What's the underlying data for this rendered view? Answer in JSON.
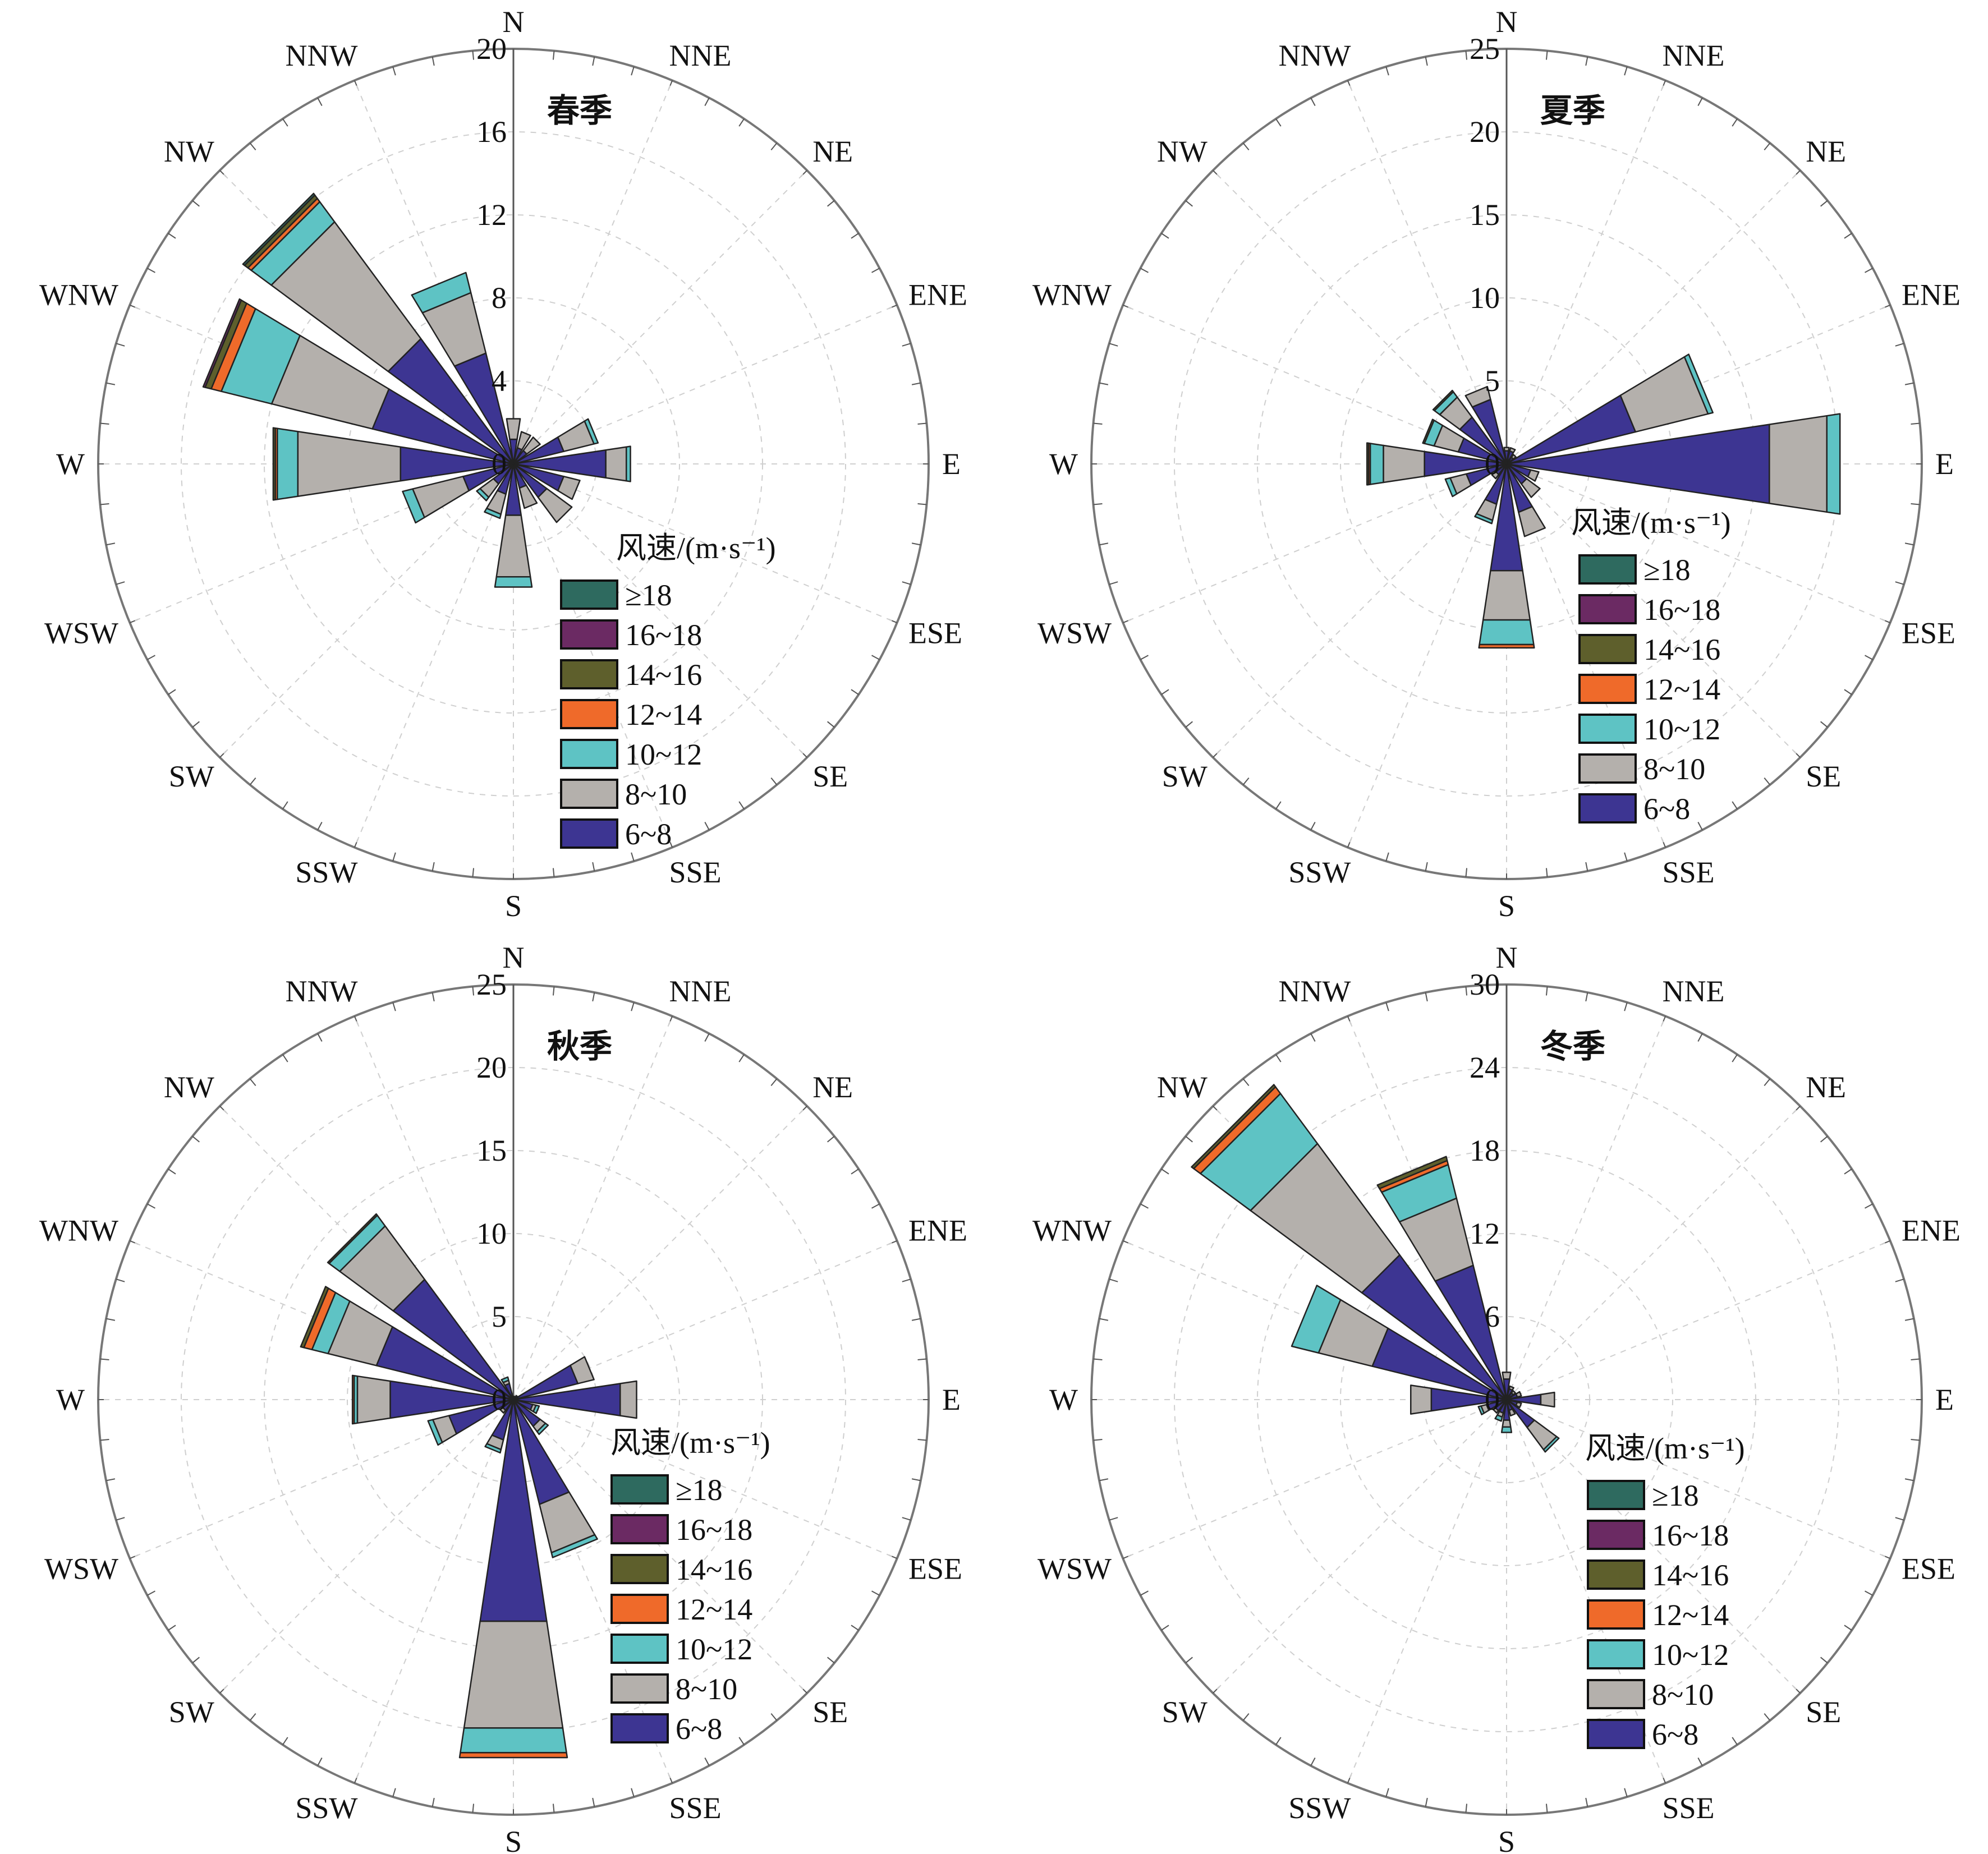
{
  "palette": [
    "#2e6a5f",
    "#6b2a63",
    "#5e5f2c",
    "#ef6a2a",
    "#5ec3c4",
    "#b4b0ac",
    "#3d3592"
  ],
  "chart_data": [
    {
      "type": "wind-rose",
      "title": "春季",
      "directions": [
        "N",
        "NNE",
        "NE",
        "ENE",
        "E",
        "ESE",
        "SE",
        "SSE",
        "S",
        "SSW",
        "SW",
        "WSW",
        "W",
        "WNW",
        "NW",
        "NNW"
      ],
      "radial_ticks": [
        0,
        4,
        8,
        12,
        16,
        20
      ],
      "rmax": 20,
      "legend_title": "风速/(m·s⁻¹)",
      "legend": [
        "≥18",
        "16~18",
        "14~16",
        "12~14",
        "10~12",
        "8~10",
        "6~8"
      ],
      "series": [
        {
          "name": "6~8",
          "values": [
            1.2,
            0.8,
            0.8,
            2.5,
            4.5,
            2.5,
            2.0,
            1.2,
            2.5,
            1.5,
            1.2,
            2.5,
            5.5,
            7.0,
            7.5,
            5.5
          ]
        },
        {
          "name": "8~10",
          "values": [
            1.0,
            0.8,
            0.8,
            1.5,
            1.0,
            0.8,
            1.5,
            1.0,
            3.0,
            1.0,
            0.8,
            2.5,
            5.0,
            5.0,
            7.0,
            3.0
          ]
        },
        {
          "name": "10~12",
          "values": [
            0.0,
            0.0,
            0.0,
            0.2,
            0.2,
            0.0,
            0.0,
            0.0,
            0.5,
            0.2,
            0.2,
            0.5,
            1.0,
            2.5,
            1.2,
            1.0
          ]
        },
        {
          "name": "12~14",
          "values": [
            0,
            0,
            0,
            0,
            0,
            0,
            0,
            0,
            0,
            0,
            0,
            0,
            0.1,
            0.5,
            0.2,
            0
          ]
        },
        {
          "name": "14~16",
          "values": [
            0,
            0,
            0,
            0,
            0,
            0,
            0,
            0,
            0,
            0,
            0,
            0,
            0.1,
            0.3,
            0.2,
            0
          ]
        },
        {
          "name": "16~18",
          "values": [
            0,
            0,
            0,
            0,
            0,
            0,
            0,
            0,
            0,
            0,
            0,
            0,
            0,
            0.1,
            0,
            0
          ]
        },
        {
          "name": "≥18",
          "values": [
            0,
            0,
            0,
            0,
            0,
            0,
            0,
            0,
            0,
            0,
            0,
            0,
            0,
            0,
            0.1,
            0
          ]
        }
      ]
    },
    {
      "type": "wind-rose",
      "title": "夏季",
      "directions": [
        "N",
        "NNE",
        "NE",
        "ENE",
        "E",
        "ESE",
        "SE",
        "SSE",
        "S",
        "SSW",
        "SW",
        "WSW",
        "W",
        "WNW",
        "NW",
        "NNW"
      ],
      "radial_ticks": [
        0,
        5,
        10,
        15,
        20,
        25
      ],
      "rmax": 25,
      "legend_title": "风速/(m·s⁻¹)",
      "legend": [
        "≥18",
        "16~18",
        "14~16",
        "12~14",
        "10~12",
        "8~10",
        "6~8"
      ],
      "series": [
        {
          "name": "6~8",
          "values": [
            0.8,
            0.8,
            0.5,
            8.0,
            16.0,
            1.5,
            1.5,
            3.0,
            6.5,
            2.5,
            0.8,
            2.5,
            5.0,
            3.0,
            3.5,
            4.0
          ]
        },
        {
          "name": "8~10",
          "values": [
            0.2,
            0.2,
            0.2,
            4.5,
            3.5,
            0.5,
            1.0,
            1.5,
            3.0,
            1.0,
            0.3,
            1.0,
            2.5,
            1.5,
            1.5,
            0.8
          ]
        },
        {
          "name": "10~12",
          "values": [
            0,
            0,
            0,
            0.3,
            0.8,
            0,
            0,
            0,
            1.5,
            0.2,
            0,
            0.3,
            0.8,
            0.6,
            0.4,
            0
          ]
        },
        {
          "name": "12~14",
          "values": [
            0,
            0,
            0,
            0,
            0,
            0,
            0,
            0,
            0.2,
            0,
            0,
            0,
            0.1,
            0,
            0,
            0
          ]
        },
        {
          "name": "14~16",
          "values": [
            0,
            0,
            0,
            0,
            0,
            0,
            0,
            0,
            0,
            0,
            0,
            0,
            0.1,
            0.1,
            0.1,
            0
          ]
        },
        {
          "name": "16~18",
          "values": [
            0,
            0,
            0,
            0,
            0,
            0,
            0,
            0,
            0,
            0,
            0,
            0,
            0,
            0,
            0,
            0
          ]
        },
        {
          "name": "≥18",
          "values": [
            0,
            0,
            0,
            0,
            0,
            0,
            0,
            0,
            0,
            0,
            0,
            0,
            0,
            0,
            0,
            0
          ]
        }
      ]
    },
    {
      "type": "wind-rose",
      "title": "秋季",
      "directions": [
        "N",
        "NNE",
        "NE",
        "ENE",
        "E",
        "ESE",
        "SE",
        "SSE",
        "S",
        "SSW",
        "SW",
        "WSW",
        "W",
        "WNW",
        "NW",
        "NNW"
      ],
      "radial_ticks": [
        0,
        5,
        10,
        15,
        20,
        25
      ],
      "rmax": 25,
      "legend_title": "风速/(m·s⁻¹)",
      "legend": [
        "≥18",
        "16~18",
        "14~16",
        "12~14",
        "10~12",
        "8~10",
        "6~8"
      ],
      "series": [
        {
          "name": "6~8",
          "values": [
            0.2,
            0.2,
            0.3,
            4.0,
            6.5,
            1.2,
            2.0,
            6.5,
            13.5,
            2.5,
            0.8,
            4.0,
            7.5,
            8.5,
            9.0,
            1.0
          ]
        },
        {
          "name": "8~10",
          "values": [
            0,
            0,
            0,
            1.0,
            1.0,
            0.2,
            0.4,
            3.0,
            6.5,
            0.6,
            0.2,
            1.0,
            2.0,
            3.0,
            4.0,
            0.2
          ]
        },
        {
          "name": "10~12",
          "values": [
            0,
            0,
            0,
            0,
            0,
            0.2,
            0.2,
            0.3,
            1.5,
            0.2,
            0,
            0.3,
            0.2,
            1.0,
            0.8,
            0.2
          ]
        },
        {
          "name": "12~14",
          "values": [
            0,
            0,
            0,
            0,
            0,
            0,
            0,
            0,
            0.3,
            0,
            0,
            0,
            0.1,
            0.5,
            0,
            0
          ]
        },
        {
          "name": "14~16",
          "values": [
            0,
            0,
            0,
            0,
            0,
            0,
            0,
            0,
            0,
            0,
            0,
            0,
            0,
            0.2,
            0.1,
            0
          ]
        },
        {
          "name": "16~18",
          "values": [
            0,
            0,
            0,
            0,
            0,
            0,
            0,
            0,
            0,
            0,
            0,
            0,
            0,
            0,
            0,
            0
          ]
        },
        {
          "name": "≥18",
          "values": [
            0,
            0,
            0,
            0,
            0,
            0,
            0,
            0,
            0,
            0,
            0,
            0,
            0,
            0,
            0,
            0
          ]
        }
      ]
    },
    {
      "type": "wind-rose",
      "title": "冬季",
      "directions": [
        "N",
        "NNE",
        "NE",
        "ENE",
        "E",
        "ESE",
        "SE",
        "SSE",
        "S",
        "SSW",
        "SW",
        "WSW",
        "W",
        "WNW",
        "NW",
        "NNW"
      ],
      "radial_ticks": [
        0,
        6,
        12,
        18,
        24,
        30
      ],
      "rmax": 30,
      "legend_title": "风速/(m·s⁻¹)",
      "legend": [
        "≥18",
        "16~18",
        "14~16",
        "12~14",
        "10~12",
        "8~10",
        "6~8"
      ],
      "series": [
        {
          "name": "6~8",
          "values": [
            1.5,
            0.8,
            0.6,
            0.8,
            2.5,
            0.8,
            2.5,
            0.8,
            1.5,
            1.0,
            1.0,
            1.5,
            5.5,
            10.0,
            13.0,
            10.0
          ]
        },
        {
          "name": "8~10",
          "values": [
            0.5,
            0.2,
            0.2,
            0.3,
            1.0,
            0.3,
            2.0,
            0.4,
            0.5,
            0.3,
            0.2,
            0.4,
            1.5,
            4.0,
            10.0,
            5.0
          ]
        },
        {
          "name": "10~12",
          "values": [
            0,
            0,
            0,
            0,
            0,
            0,
            0.2,
            0,
            0.4,
            0.3,
            0,
            0.2,
            0,
            2.0,
            4.5,
            2.5
          ]
        },
        {
          "name": "12~14",
          "values": [
            0,
            0,
            0,
            0,
            0,
            0,
            0,
            0,
            0,
            0,
            0,
            0,
            0,
            0,
            0.6,
            0.3
          ]
        },
        {
          "name": "14~16",
          "values": [
            0,
            0,
            0,
            0,
            0,
            0,
            0,
            0,
            0,
            0,
            0,
            0,
            0,
            0,
            0.2,
            0.3
          ]
        },
        {
          "name": "16~18",
          "values": [
            0,
            0,
            0,
            0,
            0,
            0,
            0,
            0,
            0,
            0,
            0,
            0,
            0,
            0,
            0,
            0
          ]
        },
        {
          "name": "≥18",
          "values": [
            0,
            0,
            0,
            0,
            0,
            0,
            0,
            0,
            0,
            0,
            0,
            0,
            0,
            0,
            0,
            0
          ]
        }
      ]
    }
  ]
}
